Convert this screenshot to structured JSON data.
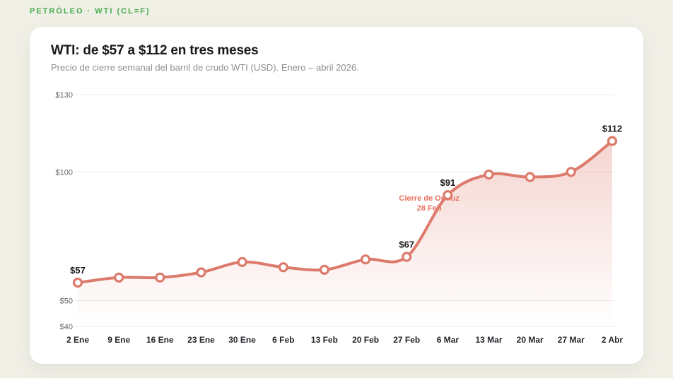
{
  "page": {
    "eyebrow": "PETRÓLEO · WTI (CL=F)"
  },
  "card": {
    "title": "WTI: de $57 a $112 en tres meses",
    "subtitle": "Precio de cierre semanal del barril de crudo WTI (USD). Enero – abril 2026."
  },
  "chart_data": {
    "type": "line",
    "title": "WTI: de $57 a $112 en tres meses",
    "subtitle": "Precio de cierre semanal del barril de crudo WTI (USD). Enero – abril 2026.",
    "unit": "USD",
    "categories": [
      "2 Ene",
      "9 Ene",
      "16 Ene",
      "23 Ene",
      "30 Ene",
      "6 Feb",
      "13 Feb",
      "20 Feb",
      "27 Feb",
      "6 Mar",
      "13 Mar",
      "20 Mar",
      "27 Mar",
      "2 Abr"
    ],
    "values": [
      57,
      59,
      59,
      61,
      65,
      63,
      62,
      66,
      67,
      91,
      99,
      98,
      100,
      112
    ],
    "ylim": [
      40,
      134
    ],
    "yticks": [
      40,
      50,
      100,
      130
    ],
    "ytick_labels": [
      "$40",
      "$50",
      "$100",
      "$130"
    ],
    "point_labels": [
      {
        "index": 0,
        "text": "$57"
      },
      {
        "index": 8,
        "text": "$67"
      },
      {
        "index": 9,
        "text": "$91"
      },
      {
        "index": 13,
        "text": "$112"
      }
    ],
    "annotation": {
      "line1": "Cierre de Ormuz",
      "line2": "28 Feb"
    },
    "grid": "horizontal-only",
    "legend": "none",
    "area_fill": true,
    "colors": {
      "line": "#DC7A6B",
      "marker_fill": "#FFFFFF",
      "area_top": "rgba(223,120,106,0.32)",
      "area_bottom": "rgba(223,120,106,0)",
      "grid": "#EBEBE9",
      "annotation": "#E8705F",
      "point_label": "#17191C",
      "ytick": "#63666A",
      "xtick": "#23272B",
      "eyebrow": "#44AC4C"
    }
  }
}
